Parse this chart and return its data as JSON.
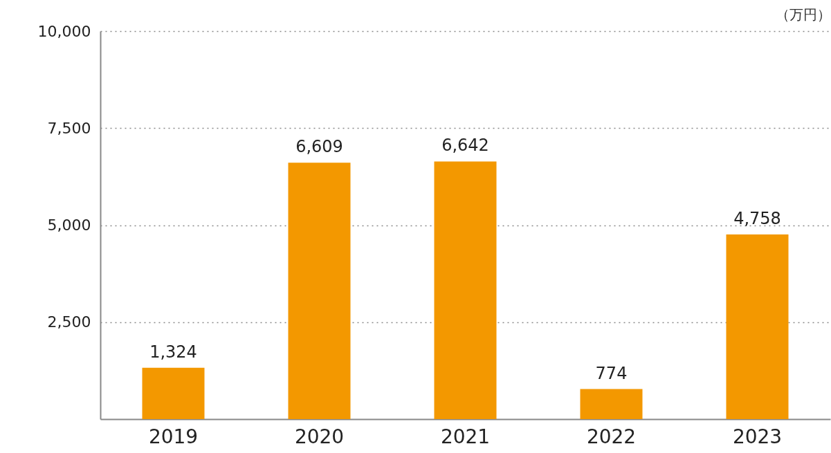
{
  "chart_data": {
    "type": "bar",
    "ylabel": "（万円）",
    "categories": [
      "2019",
      "2020",
      "2021",
      "2022",
      "2023"
    ],
    "values": [
      1324,
      6609,
      6642,
      774,
      4758
    ],
    "value_labels": [
      "1,324",
      "6,609",
      "6,642",
      "774",
      "4,758"
    ],
    "color": "#f39800",
    "ylim": [
      0,
      10000
    ],
    "yticks": [
      {
        "value": 2500,
        "label": "2,500"
      },
      {
        "value": 5000,
        "label": "5,000"
      },
      {
        "value": 7500,
        "label": "7,500"
      },
      {
        "value": 10000,
        "label": "10,000"
      }
    ],
    "grid": "y"
  }
}
